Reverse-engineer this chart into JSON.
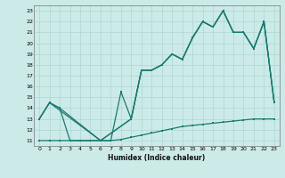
{
  "xlabel": "Humidex (Indice chaleur)",
  "bg_color": "#cceae8",
  "line_color": "#1a7a6e",
  "grid_color": "#aad6d2",
  "xlim": [
    -0.5,
    23.5
  ],
  "ylim": [
    10.5,
    23.5
  ],
  "xticks": [
    0,
    1,
    2,
    3,
    4,
    5,
    6,
    7,
    8,
    9,
    10,
    11,
    12,
    13,
    14,
    15,
    16,
    17,
    18,
    19,
    20,
    21,
    22,
    23
  ],
  "yticks": [
    11,
    12,
    13,
    14,
    15,
    16,
    17,
    18,
    19,
    20,
    21,
    22,
    23
  ],
  "line_zigzag_x": [
    0,
    1,
    2,
    3,
    4,
    5,
    6,
    7,
    8,
    9,
    10,
    11,
    12,
    13,
    14,
    15,
    16,
    17,
    18,
    19,
    20,
    21,
    22,
    23
  ],
  "line_zigzag_y": [
    13,
    14.5,
    14,
    11,
    11,
    11,
    11,
    11,
    15.5,
    13,
    17.5,
    17.5,
    18,
    19,
    18.5,
    20.5,
    22,
    21.5,
    23,
    21,
    21,
    19.5,
    22,
    14.5
  ],
  "line_smooth1_x": [
    0,
    1,
    2,
    6,
    9,
    10,
    11,
    12,
    13,
    14,
    15,
    16,
    17,
    18,
    19,
    20,
    21,
    22,
    23
  ],
  "line_smooth1_y": [
    13,
    14.5,
    14,
    11,
    13,
    17.5,
    17.5,
    18,
    19,
    18.5,
    20.5,
    22,
    21.5,
    23,
    21,
    21,
    19.5,
    22,
    14.5
  ],
  "line_smooth2_x": [
    0,
    1,
    6,
    9,
    10,
    11,
    12,
    13,
    14,
    15,
    16,
    17,
    18,
    19,
    20,
    21,
    22,
    23
  ],
  "line_smooth2_y": [
    13,
    14.5,
    11,
    13,
    17.5,
    17.5,
    18,
    19,
    18.5,
    20.5,
    22,
    21.5,
    23,
    21,
    21,
    19.5,
    22,
    14.5
  ],
  "line_bottom_x": [
    0,
    1,
    2,
    3,
    4,
    5,
    6,
    7,
    8,
    9,
    10,
    11,
    12,
    13,
    14,
    15,
    16,
    17,
    18,
    19,
    20,
    21,
    22,
    23
  ],
  "line_bottom_y": [
    11.0,
    11.0,
    11.0,
    11.0,
    11.0,
    11.0,
    11.0,
    11.0,
    11.1,
    11.3,
    11.5,
    11.7,
    11.9,
    12.1,
    12.3,
    12.4,
    12.5,
    12.6,
    12.7,
    12.8,
    12.9,
    13.0,
    13.0,
    13.0
  ]
}
